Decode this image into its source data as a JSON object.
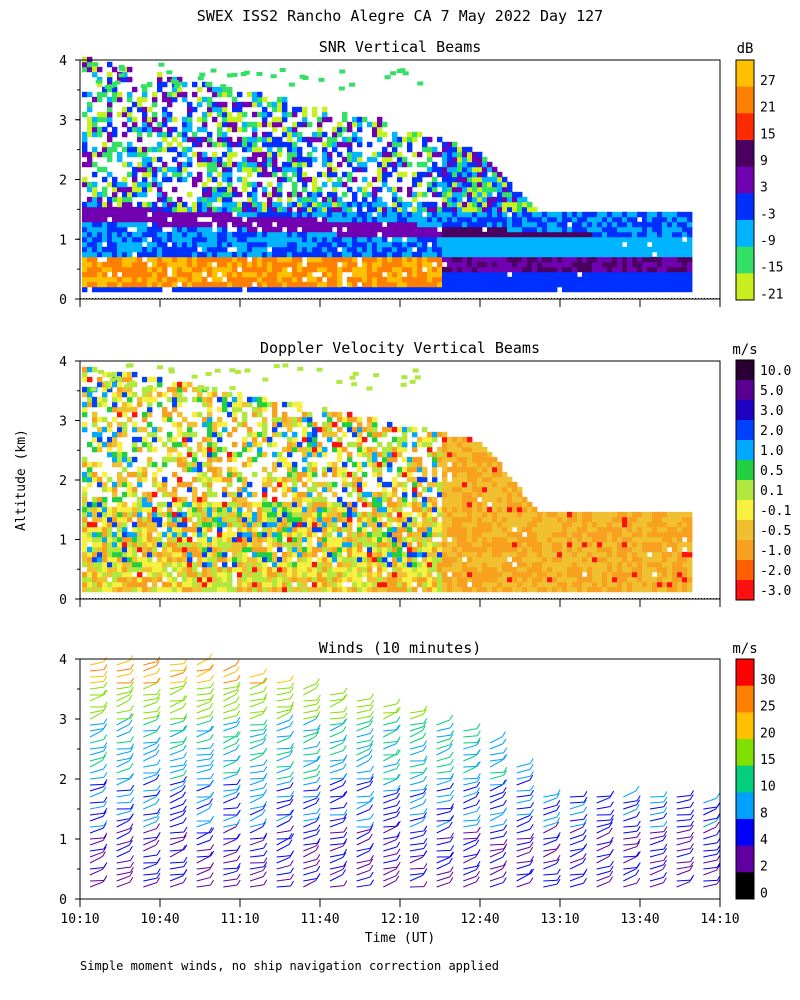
{
  "figure": {
    "title": "SWEX ISS2 Rancho Alegre CA   7 May 2022 Day 127",
    "ylabel": "Altitude (km)",
    "xlabel": "Time (UT)",
    "footnote": "Simple moment winds, no ship navigation correction applied"
  },
  "chart_data": [
    {
      "type": "heatmap",
      "title": "SNR Vertical Beams",
      "x_unit": "time UT",
      "xlim": [
        "10:10",
        "14:10"
      ],
      "x_ticks": [
        "10:10",
        "10:40",
        "11:10",
        "11:40",
        "12:10",
        "12:40",
        "13:10",
        "13:40",
        "14:10"
      ],
      "ylim": [
        0,
        4
      ],
      "y_ticks": [
        "0",
        "1",
        "2",
        "3",
        "4"
      ],
      "colorbar": {
        "unit": "dB",
        "labels": [
          "27",
          "21",
          "15",
          "9",
          "3",
          "-3",
          "-9",
          "-15",
          "-21"
        ],
        "colors": [
          "#ffc000",
          "#ff7f00",
          "#ff2a00",
          "#4a0060",
          "#7000b0",
          "#0030ff",
          "#00b4ff",
          "#33e066",
          "#c8f01e"
        ]
      },
      "data_top_km": {
        "10:10": 4.0,
        "12:00": 3.0,
        "12:40": 2.4,
        "13:00": 1.45,
        "14:00": 1.4
      },
      "notes": "strong SNR layer near 0.5 km; decreasing echo top with time"
    },
    {
      "type": "heatmap",
      "title": "Doppler Velocity Vertical Beams",
      "xlim": [
        "10:10",
        "14:10"
      ],
      "x_ticks": [
        "10:10",
        "10:40",
        "11:10",
        "11:40",
        "12:10",
        "12:40",
        "13:10",
        "13:40",
        "14:10"
      ],
      "ylim": [
        0,
        4
      ],
      "y_ticks": [
        "0",
        "1",
        "2",
        "3",
        "4"
      ],
      "colorbar": {
        "unit": "m/s",
        "labels": [
          "10.0",
          "5.0",
          "3.0",
          "2.0",
          "1.0",
          "0.5",
          "0.1",
          "-0.1",
          "-0.5",
          "-1.0",
          "-2.0",
          "-3.0"
        ],
        "colors": [
          "#2a0033",
          "#5a0090",
          "#2000c0",
          "#0040ff",
          "#00a8ff",
          "#20d040",
          "#b0e840",
          "#f8f040",
          "#f0c030",
          "#f8a020",
          "#ff6000",
          "#ff1010"
        ]
      },
      "data_top_km": {
        "10:10": 3.9,
        "12:00": 3.0,
        "12:40": 2.6,
        "13:00": 1.45,
        "14:00": 1.4
      }
    },
    {
      "type": "wind-barbs",
      "title": "Winds (10 minutes)",
      "xlim": [
        "10:10",
        "14:10"
      ],
      "x_ticks": [
        "10:10",
        "10:40",
        "11:10",
        "11:40",
        "12:10",
        "12:40",
        "13:10",
        "13:40",
        "14:10"
      ],
      "ylim": [
        0,
        4
      ],
      "y_ticks": [
        "0",
        "1",
        "2",
        "3",
        "4"
      ],
      "profile_interval_min": 10,
      "colorbar": {
        "unit": "m/s",
        "labels": [
          "30",
          "25",
          "20",
          "15",
          "10",
          "8",
          "4",
          "2",
          "0"
        ],
        "colors": [
          "#ff0000",
          "#ff8000",
          "#ffc000",
          "#80e000",
          "#00d080",
          "#00a0ff",
          "#0000ff",
          "#6000a0",
          "#000000"
        ]
      }
    }
  ]
}
